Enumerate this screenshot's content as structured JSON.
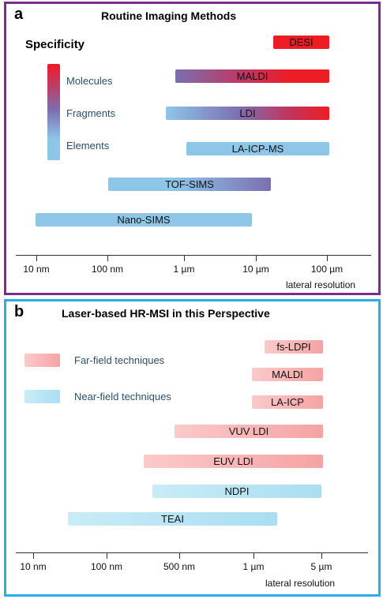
{
  "panel_a": {
    "letter": "a",
    "title": "Routine Imaging Methods",
    "specificity_label": "Specificity",
    "scale_labels": [
      "Molecules",
      "Fragments",
      "Elements"
    ],
    "bars": [
      {
        "label": "DESI"
      },
      {
        "label": "MALDI"
      },
      {
        "label": "LDI"
      },
      {
        "label": "LA-ICP-MS"
      },
      {
        "label": "TOF-SIMS"
      },
      {
        "label": "Nano-SIMS"
      }
    ],
    "ticks": [
      "10 nm",
      "100 nm",
      "1 µm",
      "10 µm",
      "100 µm"
    ],
    "axis_title": "lateral resolution"
  },
  "panel_b": {
    "letter": "b",
    "title": "Laser-based HR-MSI in this Perspective",
    "legend": [
      {
        "label": "Far-field techniques"
      },
      {
        "label": "Near-field techniques"
      }
    ],
    "bars": [
      {
        "label": "fs-LDPI"
      },
      {
        "label": "MALDI"
      },
      {
        "label": "LA-ICP"
      },
      {
        "label": "VUV LDI"
      },
      {
        "label": "EUV LDI"
      },
      {
        "label": "NDPI"
      },
      {
        "label": "TEAI"
      }
    ],
    "ticks": [
      "10 nm",
      "100 nm",
      "500 nm",
      "1 µm",
      "5 µm"
    ],
    "axis_title": "lateral resolution"
  },
  "colors": {
    "panel_a_border": "#7a2e8c",
    "panel_b_border": "#27aee3",
    "far_field": "#f5a3a3",
    "near_field": "#a9def2",
    "molecules": "#ee1c25",
    "fragments": "#7b6fb0",
    "elements": "#8ec6e8"
  }
}
